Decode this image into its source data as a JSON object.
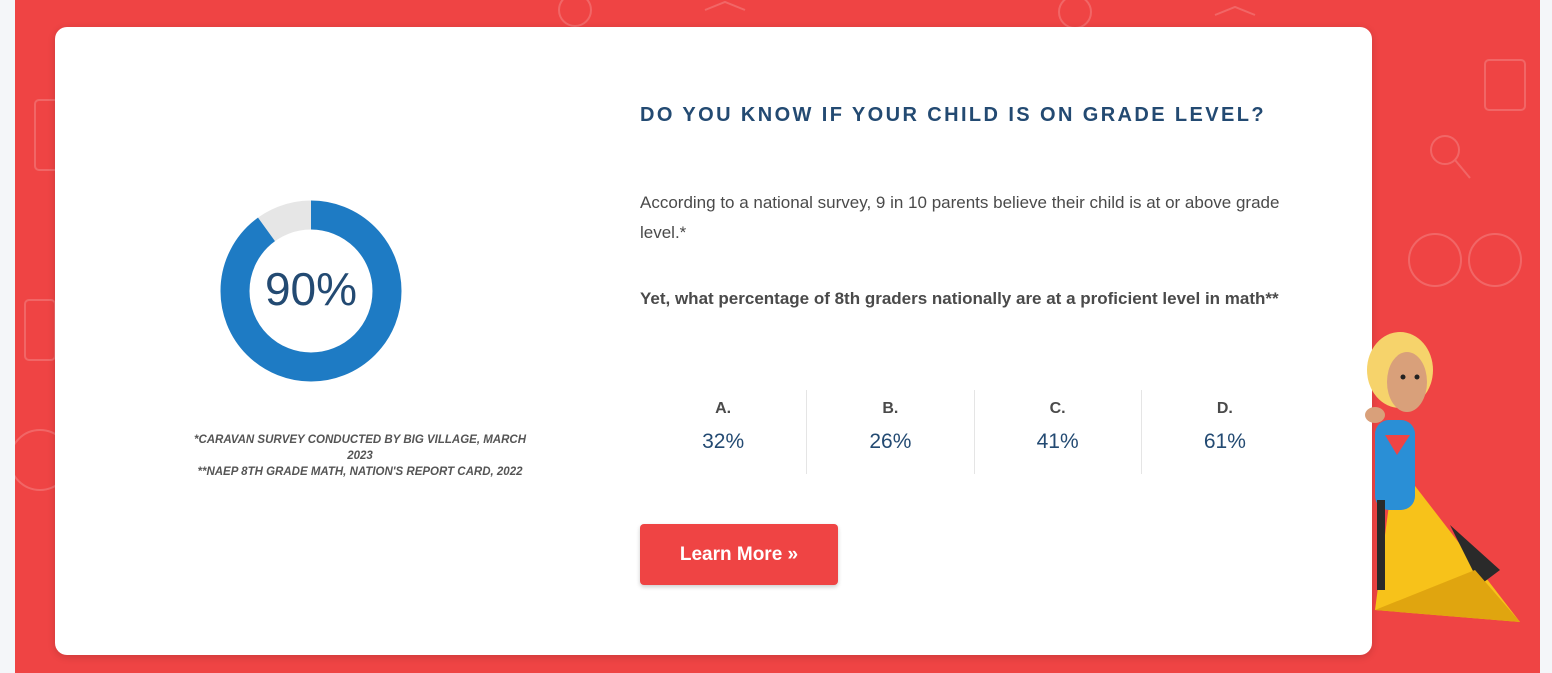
{
  "donut": {
    "value": 90,
    "label": "90%"
  },
  "notes": [
    "*Caravan survey conducted by Big Village, March 2023",
    "**NAEP 8th Grade Math, Nation's Report Card, 2022"
  ],
  "heading": "DO YOU KNOW IF YOUR CHILD IS ON GRADE LEVEL?",
  "paragraph": "According to a national survey, 9 in 10 parents believe their child is at or above grade level.*",
  "question": "Yet, what percentage of 8th graders nationally are at a proficient level in math**",
  "options": [
    {
      "letter": "A.",
      "value": "32%"
    },
    {
      "letter": "B.",
      "value": "26%"
    },
    {
      "letter": "C.",
      "value": "41%"
    },
    {
      "letter": "D.",
      "value": "61%"
    }
  ],
  "button": "Learn More »"
}
